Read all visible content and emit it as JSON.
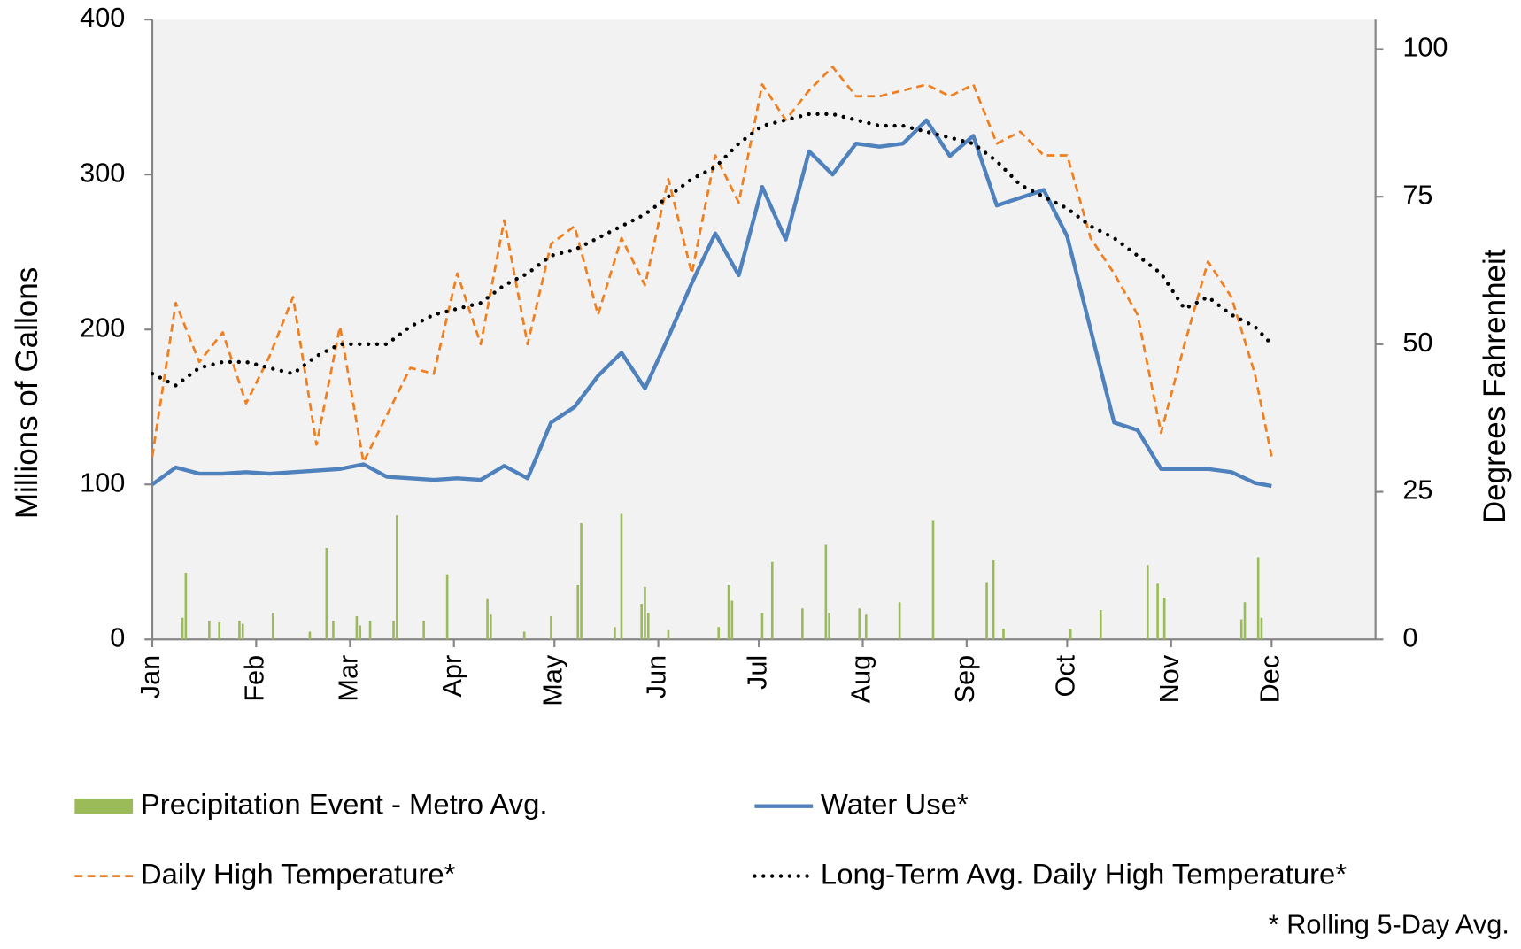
{
  "chart_data": {
    "type": "line",
    "footnote": "* Rolling 5-Day Avg.",
    "y_label": "Millions of Gallons",
    "y2_label": "Degrees  Fahrenheit",
    "xlim": [
      0,
      365
    ],
    "xticks": [
      {
        "value": 0,
        "label": "Jan"
      },
      {
        "value": 31,
        "label": "Feb"
      },
      {
        "value": 59,
        "label": "Mar"
      },
      {
        "value": 90,
        "label": "Apr"
      },
      {
        "value": 120,
        "label": "May"
      },
      {
        "value": 151,
        "label": "Jun"
      },
      {
        "value": 181,
        "label": "Jul"
      },
      {
        "value": 212,
        "label": "Aug"
      },
      {
        "value": 243,
        "label": "Sep"
      },
      {
        "value": 273,
        "label": "Oct"
      },
      {
        "value": 304,
        "label": "Nov"
      },
      {
        "value": 334,
        "label": "Dec"
      }
    ],
    "ylim": [
      0,
      400
    ],
    "yticks": [
      0,
      100,
      200,
      300,
      400
    ],
    "y2lim": [
      0,
      105
    ],
    "y2ticks": [
      0,
      25,
      50,
      75,
      100
    ],
    "x": [
      0,
      7,
      14,
      21,
      28,
      35,
      42,
      49,
      56,
      63,
      70,
      77,
      84,
      91,
      98,
      105,
      112,
      119,
      126,
      133,
      140,
      147,
      154,
      161,
      168,
      175,
      182,
      189,
      196,
      203,
      210,
      217,
      224,
      231,
      238,
      245,
      252,
      259,
      266,
      273,
      280,
      287,
      294,
      301,
      308,
      315,
      322,
      329,
      334
    ],
    "series": [
      {
        "name": "Precipitation Event - Metro Avg.",
        "type": "bar",
        "color": "#9bbb59",
        "axis": "y",
        "x": [
          9,
          10,
          17,
          20,
          26,
          27,
          36,
          47,
          52,
          54,
          61,
          62,
          65,
          72,
          73,
          81,
          88,
          100,
          101,
          111,
          119,
          127,
          128,
          138,
          140,
          146,
          147,
          148,
          154,
          169,
          172,
          173,
          182,
          185,
          194,
          201,
          202,
          211,
          213,
          223,
          233,
          249,
          251,
          254,
          274,
          283,
          297,
          300,
          302,
          325,
          326,
          330,
          331
        ],
        "values": [
          14,
          43,
          12,
          11,
          12,
          10,
          17,
          5,
          59,
          12,
          15,
          9,
          12,
          12,
          80,
          12,
          42,
          26,
          16,
          5,
          15,
          35,
          75,
          8,
          81,
          23,
          34,
          17,
          6,
          8,
          35,
          25,
          17,
          50,
          20,
          61,
          17,
          20,
          16,
          24,
          77,
          37,
          51,
          7,
          7,
          19,
          48,
          36,
          27,
          13,
          24,
          53,
          14
        ]
      },
      {
        "name": "Water Use*",
        "type": "line",
        "style": "solid",
        "color": "#4f81bd",
        "axis": "y",
        "values": [
          100,
          111,
          107,
          107,
          108,
          107,
          108,
          109,
          110,
          113,
          105,
          104,
          103,
          104,
          103,
          112,
          104,
          140,
          150,
          170,
          185,
          162,
          195,
          230,
          262,
          235,
          292,
          258,
          315,
          300,
          320,
          318,
          320,
          335,
          312,
          325,
          280,
          285,
          290,
          260,
          200,
          140,
          135,
          110,
          110,
          110,
          108,
          101,
          99
        ]
      },
      {
        "name": "Daily High Temperature*",
        "type": "line",
        "style": "dashed",
        "color": "#f07f20",
        "axis": "y2",
        "values": [
          31,
          57,
          47,
          52,
          40,
          48,
          58,
          33,
          53,
          30,
          38,
          46,
          45,
          62,
          50,
          71,
          50,
          67,
          70,
          55,
          68,
          60,
          78,
          62,
          82,
          74,
          94,
          88,
          93,
          97,
          92,
          92,
          93,
          94,
          92,
          94,
          84,
          86,
          82,
          82,
          68,
          62,
          55,
          35,
          50,
          64,
          58,
          45,
          31
        ]
      },
      {
        "name": "Long-Term Avg. Daily High Temperature*",
        "type": "line",
        "style": "dotted",
        "color": "#000000",
        "axis": "y2",
        "values": [
          45,
          43,
          46,
          47,
          47,
          46,
          45,
          48,
          50,
          50,
          50,
          53,
          55,
          56,
          57,
          60,
          62,
          65,
          66,
          68,
          70,
          72,
          75,
          78,
          80,
          84,
          87,
          88,
          89,
          89,
          88,
          87,
          87,
          86,
          85,
          84,
          81,
          77,
          75,
          73,
          70,
          68,
          65,
          62,
          56,
          58,
          55,
          53,
          50
        ]
      }
    ]
  }
}
